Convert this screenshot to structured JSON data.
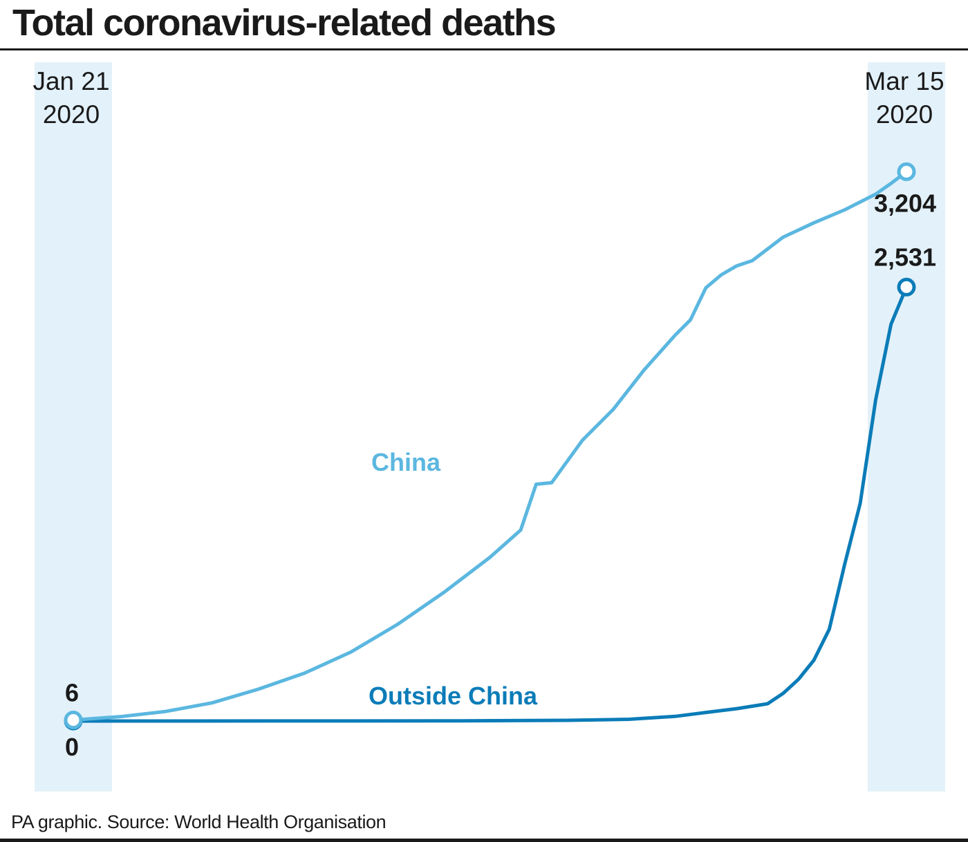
{
  "title": "Total coronavirus-related deaths",
  "source": "PA graphic. Source: World Health Organisation",
  "colors": {
    "china": "#5bb7e0",
    "outside_china": "#0b7cb8",
    "band": "#e3f1fa",
    "text": "#1a1a1a"
  },
  "chart_data": {
    "type": "line",
    "title": "Total coronavirus-related deaths",
    "x_range": [
      "2020-01-21",
      "2020-03-15"
    ],
    "x_labels": [
      {
        "date": "2020-01-21",
        "line1": "Jan 21",
        "line2": "2020"
      },
      {
        "date": "2020-03-15",
        "line1": "Mar 15",
        "line2": "2020"
      }
    ],
    "ylim": [
      0,
      3500
    ],
    "grid": false,
    "legend": "inline",
    "series": [
      {
        "name": "China",
        "color": "#5bb7e0",
        "start_label": "6",
        "end_label": "3,204",
        "points": [
          {
            "x": "2020-01-21",
            "y": 6
          },
          {
            "x": "2020-01-24",
            "y": 25
          },
          {
            "x": "2020-01-27",
            "y": 56
          },
          {
            "x": "2020-01-30",
            "y": 106
          },
          {
            "x": "2020-02-02",
            "y": 186
          },
          {
            "x": "2020-02-05",
            "y": 280
          },
          {
            "x": "2020-02-08",
            "y": 403
          },
          {
            "x": "2020-02-11",
            "y": 563
          },
          {
            "x": "2020-02-14",
            "y": 749
          },
          {
            "x": "2020-02-17",
            "y": 955
          },
          {
            "x": "2020-02-19",
            "y": 1114
          },
          {
            "x": "2020-02-20",
            "y": 1381
          },
          {
            "x": "2020-02-21",
            "y": 1390
          },
          {
            "x": "2020-02-23",
            "y": 1638
          },
          {
            "x": "2020-02-25",
            "y": 1818
          },
          {
            "x": "2020-02-27",
            "y": 2048
          },
          {
            "x": "2020-02-29",
            "y": 2250
          },
          {
            "x": "2020-03-01",
            "y": 2340
          },
          {
            "x": "2020-03-02",
            "y": 2527
          },
          {
            "x": "2020-03-03",
            "y": 2603
          },
          {
            "x": "2020-03-04",
            "y": 2655
          },
          {
            "x": "2020-03-05",
            "y": 2685
          },
          {
            "x": "2020-03-07",
            "y": 2822
          },
          {
            "x": "2020-03-09",
            "y": 2906
          },
          {
            "x": "2020-03-11",
            "y": 2982
          },
          {
            "x": "2020-03-13",
            "y": 3073
          },
          {
            "x": "2020-03-14",
            "y": 3136
          },
          {
            "x": "2020-03-15",
            "y": 3204
          }
        ]
      },
      {
        "name": "Outside China",
        "color": "#0b7cb8",
        "start_label": "0",
        "end_label": "2,531",
        "points": [
          {
            "x": "2020-01-21",
            "y": 0
          },
          {
            "x": "2020-02-15",
            "y": 1
          },
          {
            "x": "2020-02-22",
            "y": 4
          },
          {
            "x": "2020-02-26",
            "y": 10
          },
          {
            "x": "2020-02-29",
            "y": 27
          },
          {
            "x": "2020-03-02",
            "y": 50
          },
          {
            "x": "2020-03-04",
            "y": 72
          },
          {
            "x": "2020-03-06",
            "y": 101
          },
          {
            "x": "2020-03-07",
            "y": 161
          },
          {
            "x": "2020-03-08",
            "y": 243
          },
          {
            "x": "2020-03-09",
            "y": 355
          },
          {
            "x": "2020-03-10",
            "y": 536
          },
          {
            "x": "2020-03-11",
            "y": 915
          },
          {
            "x": "2020-03-12",
            "y": 1270
          },
          {
            "x": "2020-03-13",
            "y": 1872
          },
          {
            "x": "2020-03-14",
            "y": 2315
          },
          {
            "x": "2020-03-15",
            "y": 2531
          }
        ]
      }
    ]
  }
}
